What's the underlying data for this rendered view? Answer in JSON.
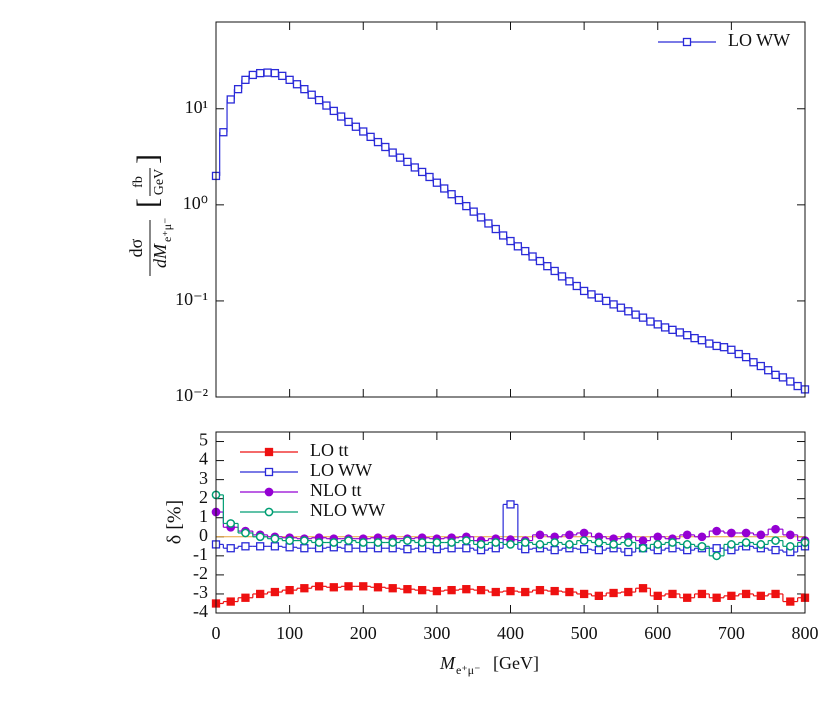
{
  "chart_data": [
    {
      "type": "line",
      "style": "steps",
      "log_scale": true,
      "legend": "top-right",
      "ylabel": {
        "numerator": "dσ",
        "denominator": "dM",
        "subscript": "e⁺μ⁻",
        "unit_numerator": "fb",
        "unit_denominator": "GeV"
      },
      "xlim": [
        0,
        800
      ],
      "ylim": [
        0.01,
        80
      ],
      "yticks": [
        {
          "value": 0.01,
          "label": "10⁻²"
        },
        {
          "value": 0.1,
          "label": "10⁻¹"
        },
        {
          "value": 1,
          "label": "10⁰"
        },
        {
          "value": 10,
          "label": "10¹"
        }
      ],
      "x": [
        0,
        10,
        20,
        30,
        40,
        50,
        60,
        70,
        80,
        90,
        100,
        110,
        120,
        130,
        140,
        150,
        160,
        170,
        180,
        190,
        200,
        210,
        220,
        230,
        240,
        250,
        260,
        270,
        280,
        290,
        300,
        310,
        320,
        330,
        340,
        350,
        360,
        370,
        380,
        390,
        400,
        410,
        420,
        430,
        440,
        450,
        460,
        470,
        480,
        490,
        500,
        510,
        520,
        530,
        540,
        550,
        560,
        570,
        580,
        590,
        600,
        610,
        620,
        630,
        640,
        650,
        660,
        670,
        680,
        690,
        700,
        710,
        720,
        730,
        740,
        750,
        760,
        770,
        780,
        790,
        800
      ],
      "series": [
        {
          "name": "LO WW",
          "color": "#2a2ad8",
          "marker": "open-square",
          "values": [
            2.0,
            5.7,
            12.5,
            16,
            20,
            22.5,
            23.5,
            23.8,
            23.5,
            22,
            20,
            18,
            16,
            14,
            12.3,
            10.8,
            9.5,
            8.3,
            7.3,
            6.5,
            5.8,
            5.1,
            4.5,
            4.0,
            3.5,
            3.1,
            2.8,
            2.45,
            2.2,
            1.95,
            1.7,
            1.48,
            1.29,
            1.12,
            0.97,
            0.85,
            0.74,
            0.64,
            0.56,
            0.48,
            0.42,
            0.37,
            0.33,
            0.29,
            0.26,
            0.23,
            0.205,
            0.18,
            0.16,
            0.143,
            0.127,
            0.117,
            0.108,
            0.1,
            0.092,
            0.085,
            0.078,
            0.072,
            0.067,
            0.061,
            0.057,
            0.053,
            0.05,
            0.047,
            0.044,
            0.041,
            0.039,
            0.036,
            0.034,
            0.033,
            0.031,
            0.028,
            0.026,
            0.023,
            0.021,
            0.019,
            0.017,
            0.016,
            0.0145,
            0.013,
            0.012
          ]
        }
      ]
    },
    {
      "type": "line",
      "style": "steps",
      "log_scale": false,
      "legend": "top-left",
      "ylabel": "δ [%]",
      "xlabel": {
        "symbol": "M",
        "subscript": "e⁺μ⁻",
        "unit": "[GeV]"
      },
      "xlim": [
        0,
        800
      ],
      "ylim": [
        -4,
        5.5
      ],
      "xticks": [
        0,
        100,
        200,
        300,
        400,
        500,
        600,
        700,
        800
      ],
      "yticks": [
        -4,
        -3,
        -2,
        -1,
        0,
        1,
        2,
        3,
        4,
        5
      ],
      "x": [
        0,
        20,
        40,
        60,
        80,
        100,
        120,
        140,
        160,
        180,
        200,
        220,
        240,
        260,
        280,
        300,
        320,
        340,
        360,
        380,
        400,
        420,
        440,
        460,
        480,
        500,
        520,
        540,
        560,
        580,
        600,
        620,
        640,
        660,
        680,
        700,
        720,
        740,
        760,
        780,
        800
      ],
      "series": [
        {
          "name": "LO tt",
          "color": "#ee1111",
          "marker": "filled-square",
          "values": [
            -3.5,
            -3.4,
            -3.2,
            -3.0,
            -2.9,
            -2.8,
            -2.7,
            -2.6,
            -2.65,
            -2.6,
            -2.6,
            -2.65,
            -2.7,
            -2.75,
            -2.8,
            -2.85,
            -2.8,
            -2.75,
            -2.8,
            -2.9,
            -2.85,
            -2.9,
            -2.8,
            -2.85,
            -2.9,
            -3.0,
            -3.1,
            -2.95,
            -2.9,
            -2.7,
            -3.1,
            -3.0,
            -3.2,
            -3.0,
            -3.2,
            -3.1,
            -3.0,
            -3.1,
            -3.0,
            -3.4,
            -3.2
          ]
        },
        {
          "name": "LO WW",
          "color": "#2a2ad8",
          "marker": "open-square",
          "values": [
            -0.4,
            -0.6,
            -0.5,
            -0.5,
            -0.5,
            -0.55,
            -0.6,
            -0.6,
            -0.55,
            -0.6,
            -0.6,
            -0.6,
            -0.6,
            -0.65,
            -0.6,
            -0.65,
            -0.6,
            -0.6,
            -0.7,
            -0.6,
            1.7,
            -0.65,
            -0.6,
            -0.7,
            -0.6,
            -0.65,
            -0.7,
            -0.6,
            -0.8,
            -0.6,
            -0.7,
            -0.6,
            -0.7,
            -0.6,
            -0.6,
            -0.7,
            -0.5,
            -0.6,
            -0.7,
            -0.8,
            -0.5
          ]
        },
        {
          "name": "NLO tt",
          "color": "#9400d3",
          "marker": "filled-circle",
          "values": [
            1.3,
            0.5,
            0.3,
            0.1,
            0.0,
            -0.05,
            -0.1,
            -0.05,
            -0.1,
            -0.1,
            -0.1,
            -0.05,
            -0.1,
            -0.1,
            -0.05,
            -0.1,
            -0.05,
            0.0,
            -0.2,
            -0.1,
            -0.15,
            -0.2,
            0.1,
            0.0,
            0.1,
            0.2,
            0.0,
            -0.1,
            0.0,
            -0.2,
            0.0,
            -0.1,
            0.1,
            0.0,
            0.3,
            0.2,
            0.2,
            0.1,
            0.4,
            0.1,
            -0.2
          ]
        },
        {
          "name": "NLO WW",
          "color": "#009e73",
          "marker": "open-circle",
          "values": [
            2.2,
            0.7,
            0.2,
            0.0,
            -0.1,
            -0.2,
            -0.2,
            -0.3,
            -0.3,
            -0.2,
            -0.3,
            -0.3,
            -0.3,
            -0.2,
            -0.3,
            -0.3,
            -0.3,
            -0.2,
            -0.4,
            -0.3,
            -0.4,
            -0.3,
            -0.4,
            -0.3,
            -0.4,
            -0.2,
            -0.3,
            -0.4,
            -0.3,
            -0.6,
            -0.4,
            -0.3,
            -0.4,
            -0.5,
            -1.0,
            -0.4,
            -0.3,
            -0.4,
            -0.2,
            -0.5,
            -0.3
          ]
        }
      ]
    }
  ]
}
